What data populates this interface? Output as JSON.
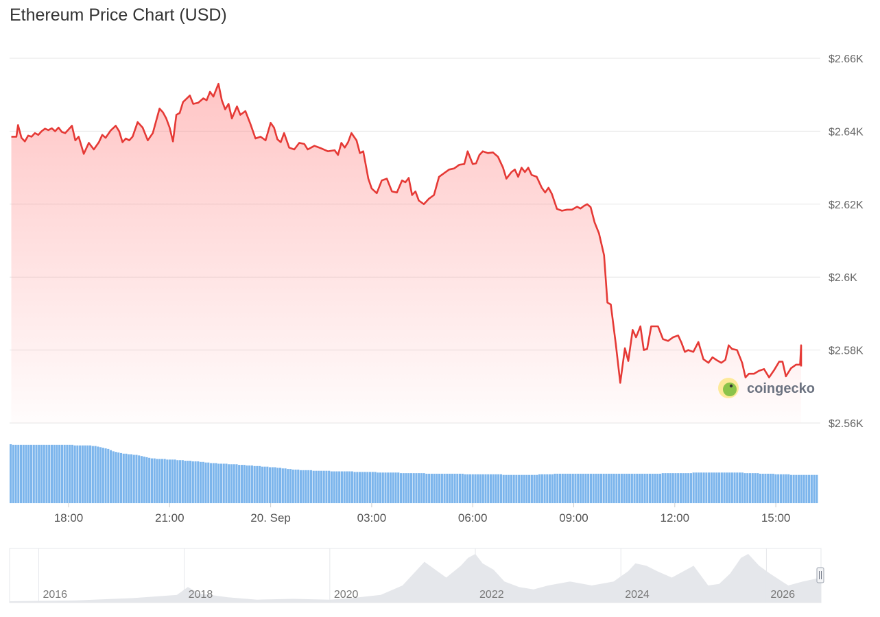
{
  "title": "Ethereum Price Chart (USD)",
  "watermark": "coingecko",
  "colors": {
    "price_line": "#e53935",
    "price_fill": "#ff7f7f",
    "volume": "#7cb5ec",
    "grid": "#e6e6e6",
    "navigator_area": "#e5e7eb"
  },
  "chart_data": {
    "type": "line",
    "title": "Ethereum Price Chart (USD)",
    "xlabel": "",
    "ylabel": "",
    "ylim": [
      2560,
      2660
    ],
    "y_ticks": [
      "$2.56K",
      "$2.58K",
      "$2.6K",
      "$2.62K",
      "$2.64K",
      "$2.66K"
    ],
    "x_ticks": [
      "18:00",
      "21:00",
      "20. Sep",
      "03:00",
      "06:00",
      "09:00",
      "12:00",
      "15:00"
    ],
    "x_tick_hours": [
      18,
      21,
      24,
      27,
      30,
      33,
      36,
      39
    ],
    "x_range_hours": [
      16.3,
      40.2
    ],
    "grid": true,
    "legend": "none",
    "series": [
      {
        "values": [
          [
            16.3,
            2638.5
          ],
          [
            16.45,
            2638.5
          ],
          [
            16.5,
            2641.7
          ],
          [
            16.6,
            2638.2
          ],
          [
            16.7,
            2637.2
          ],
          [
            16.8,
            2638.8
          ],
          [
            16.9,
            2638.5
          ],
          [
            17.0,
            2639.5
          ],
          [
            17.1,
            2639.0
          ],
          [
            17.2,
            2640.0
          ],
          [
            17.3,
            2640.7
          ],
          [
            17.4,
            2640.3
          ],
          [
            17.5,
            2640.8
          ],
          [
            17.6,
            2640.0
          ],
          [
            17.7,
            2641.0
          ],
          [
            17.8,
            2639.8
          ],
          [
            17.9,
            2639.5
          ],
          [
            18.0,
            2640.5
          ],
          [
            18.1,
            2641.5
          ],
          [
            18.2,
            2637.5
          ],
          [
            18.3,
            2638.5
          ],
          [
            18.45,
            2633.8
          ],
          [
            18.6,
            2636.8
          ],
          [
            18.75,
            2635.0
          ],
          [
            18.9,
            2637.0
          ],
          [
            19.0,
            2639.0
          ],
          [
            19.1,
            2638.2
          ],
          [
            19.25,
            2640.2
          ],
          [
            19.4,
            2641.5
          ],
          [
            19.5,
            2640.0
          ],
          [
            19.6,
            2637.0
          ],
          [
            19.7,
            2638.0
          ],
          [
            19.8,
            2637.5
          ],
          [
            19.9,
            2638.5
          ],
          [
            20.05,
            2642.5
          ],
          [
            20.2,
            2641.0
          ],
          [
            20.35,
            2637.5
          ],
          [
            20.5,
            2639.5
          ],
          [
            20.7,
            2646.2
          ],
          [
            20.8,
            2645.2
          ],
          [
            20.9,
            2643.5
          ],
          [
            21.0,
            2641.0
          ],
          [
            21.1,
            2637.2
          ],
          [
            21.2,
            2644.5
          ],
          [
            21.3,
            2645.0
          ],
          [
            21.4,
            2648.0
          ],
          [
            21.6,
            2649.8
          ],
          [
            21.7,
            2647.5
          ],
          [
            21.85,
            2647.8
          ],
          [
            22.0,
            2649.0
          ],
          [
            22.1,
            2648.5
          ],
          [
            22.2,
            2650.8
          ],
          [
            22.3,
            2649.5
          ],
          [
            22.45,
            2653.0
          ],
          [
            22.55,
            2648.5
          ],
          [
            22.65,
            2646.0
          ],
          [
            22.75,
            2647.5
          ],
          [
            22.85,
            2643.5
          ],
          [
            23.0,
            2646.8
          ],
          [
            23.1,
            2644.5
          ],
          [
            23.25,
            2645.5
          ],
          [
            23.4,
            2642.0
          ],
          [
            23.55,
            2638.0
          ],
          [
            23.7,
            2638.5
          ],
          [
            23.85,
            2637.5
          ],
          [
            24.0,
            2642.3
          ],
          [
            24.1,
            2641.0
          ],
          [
            24.2,
            2637.8
          ],
          [
            24.3,
            2637.0
          ],
          [
            24.4,
            2639.5
          ],
          [
            24.55,
            2635.5
          ],
          [
            24.7,
            2635.0
          ],
          [
            24.85,
            2636.8
          ],
          [
            25.0,
            2636.5
          ],
          [
            25.1,
            2635.0
          ],
          [
            25.3,
            2636.0
          ],
          [
            25.5,
            2635.3
          ],
          [
            25.7,
            2634.5
          ],
          [
            25.9,
            2634.8
          ],
          [
            26.0,
            2633.5
          ],
          [
            26.1,
            2636.8
          ],
          [
            26.2,
            2635.5
          ],
          [
            26.3,
            2637.0
          ],
          [
            26.4,
            2639.5
          ],
          [
            26.55,
            2637.5
          ],
          [
            26.65,
            2634.0
          ],
          [
            26.75,
            2634.5
          ],
          [
            26.9,
            2627.0
          ],
          [
            27.0,
            2624.3
          ],
          [
            27.15,
            2623.0
          ],
          [
            27.3,
            2626.5
          ],
          [
            27.45,
            2627.0
          ],
          [
            27.6,
            2623.5
          ],
          [
            27.75,
            2623.2
          ],
          [
            27.9,
            2626.5
          ],
          [
            28.0,
            2626.0
          ],
          [
            28.1,
            2627.2
          ],
          [
            28.2,
            2622.5
          ],
          [
            28.3,
            2623.5
          ],
          [
            28.4,
            2621.0
          ],
          [
            28.55,
            2620.0
          ],
          [
            28.7,
            2621.5
          ],
          [
            28.85,
            2622.5
          ],
          [
            29.0,
            2627.5
          ],
          [
            29.15,
            2628.5
          ],
          [
            29.3,
            2629.5
          ],
          [
            29.45,
            2629.8
          ],
          [
            29.6,
            2630.8
          ],
          [
            29.75,
            2631.0
          ],
          [
            29.85,
            2634.5
          ],
          [
            30.0,
            2631.0
          ],
          [
            30.1,
            2631.2
          ],
          [
            30.2,
            2633.5
          ],
          [
            30.3,
            2634.5
          ],
          [
            30.45,
            2634.0
          ],
          [
            30.6,
            2634.2
          ],
          [
            30.75,
            2633.0
          ],
          [
            30.9,
            2630.0
          ],
          [
            31.0,
            2627.0
          ],
          [
            31.15,
            2628.8
          ],
          [
            31.25,
            2629.5
          ],
          [
            31.35,
            2627.5
          ],
          [
            31.45,
            2630.0
          ],
          [
            31.55,
            2628.8
          ],
          [
            31.65,
            2630.0
          ],
          [
            31.75,
            2628.0
          ],
          [
            31.9,
            2627.5
          ],
          [
            32.05,
            2624.5
          ],
          [
            32.15,
            2623.2
          ],
          [
            32.25,
            2624.5
          ],
          [
            32.35,
            2622.8
          ],
          [
            32.5,
            2618.7
          ],
          [
            32.65,
            2618.2
          ],
          [
            32.8,
            2618.5
          ],
          [
            32.95,
            2618.5
          ],
          [
            33.1,
            2619.3
          ],
          [
            33.2,
            2618.8
          ],
          [
            33.3,
            2619.5
          ],
          [
            33.4,
            2620.0
          ],
          [
            33.5,
            2619.2
          ],
          [
            33.62,
            2615.0
          ],
          [
            33.75,
            2612.0
          ],
          [
            33.9,
            2606.0
          ],
          [
            34.0,
            2593.0
          ],
          [
            34.1,
            2592.5
          ],
          [
            34.25,
            2581.5
          ],
          [
            34.38,
            2571.0
          ],
          [
            34.52,
            2580.5
          ],
          [
            34.62,
            2577.0
          ],
          [
            34.75,
            2585.5
          ],
          [
            34.85,
            2583.5
          ],
          [
            34.98,
            2586.5
          ],
          [
            35.08,
            2580.0
          ],
          [
            35.18,
            2580.3
          ],
          [
            35.3,
            2586.5
          ],
          [
            35.5,
            2586.5
          ],
          [
            35.65,
            2583.0
          ],
          [
            35.8,
            2582.5
          ],
          [
            35.95,
            2583.5
          ],
          [
            36.1,
            2584.0
          ],
          [
            36.2,
            2582.0
          ],
          [
            36.3,
            2579.5
          ],
          [
            36.4,
            2580.0
          ],
          [
            36.55,
            2579.5
          ],
          [
            36.7,
            2582.2
          ],
          [
            36.85,
            2577.5
          ],
          [
            37.0,
            2576.5
          ],
          [
            37.12,
            2578.0
          ],
          [
            37.25,
            2577.2
          ],
          [
            37.38,
            2576.5
          ],
          [
            37.5,
            2577.3
          ],
          [
            37.6,
            2581.3
          ],
          [
            37.7,
            2580.3
          ],
          [
            37.85,
            2580.0
          ],
          [
            38.0,
            2576.5
          ],
          [
            38.1,
            2572.5
          ],
          [
            38.2,
            2573.5
          ],
          [
            38.35,
            2573.5
          ],
          [
            38.5,
            2574.3
          ],
          [
            38.65,
            2574.8
          ],
          [
            38.8,
            2572.5
          ],
          [
            38.95,
            2574.5
          ],
          [
            39.1,
            2576.8
          ],
          [
            39.2,
            2576.8
          ],
          [
            39.3,
            2572.8
          ],
          [
            39.45,
            2575.0
          ],
          [
            39.6,
            2576.0
          ],
          [
            39.72,
            2576.0
          ],
          [
            39.85,
            2581.3
          ],
          [
            40.0,
            2580.0
          ],
          [
            40.15,
            2579.0
          ],
          [
            40.3,
            2576.0
          ],
          [
            40.5,
            2575.5
          ]
        ]
      }
    ]
  },
  "volume_chart": {
    "type": "bar",
    "values": [
      100,
      99,
      99,
      99,
      99,
      99,
      99,
      99,
      99,
      99,
      99,
      99,
      99,
      99,
      99,
      99,
      99,
      99,
      99,
      99,
      99,
      99,
      99,
      99,
      99,
      98,
      98,
      98,
      98,
      98,
      98,
      98,
      97,
      97,
      96,
      95,
      94,
      93,
      92,
      90,
      88,
      87,
      86,
      85,
      84,
      84,
      83,
      83,
      82,
      82,
      81,
      80,
      79,
      78,
      77,
      76,
      76,
      75,
      75,
      75,
      75,
      74,
      74,
      74,
      74,
      73,
      73,
      73,
      72,
      72,
      72,
      71,
      71,
      71,
      70,
      70,
      69,
      69,
      68,
      68,
      68,
      67,
      67,
      67,
      67,
      66,
      66,
      66,
      66,
      65,
      65,
      65,
      64,
      64,
      64,
      63,
      63,
      63,
      62,
      62,
      62,
      61,
      61,
      61,
      60,
      60,
      59,
      59,
      58,
      58,
      57,
      57,
      57,
      56,
      56,
      56,
      56,
      56,
      55,
      55,
      55,
      55,
      55,
      55,
      55,
      54,
      54,
      54,
      54,
      54,
      54,
      54,
      54,
      54,
      53,
      53,
      53,
      53,
      53,
      53,
      53,
      53,
      53,
      52,
      52,
      52,
      52,
      52,
      52,
      52,
      52,
      52,
      51,
      51,
      51,
      51,
      51,
      51,
      51,
      51,
      51,
      51,
      50,
      50,
      50,
      50,
      50,
      50,
      50,
      50,
      50,
      50,
      50,
      50,
      50,
      50,
      50,
      49,
      49,
      49,
      49,
      49,
      49,
      49,
      49,
      49,
      49,
      49,
      49,
      49,
      49,
      49,
      48,
      48,
      48,
      48,
      48,
      48,
      48,
      48,
      48,
      48,
      48,
      48,
      48,
      48,
      49,
      49,
      49,
      49,
      49,
      49,
      50,
      50,
      50,
      50,
      50,
      50,
      50,
      50,
      50,
      50,
      50,
      50,
      50,
      50,
      50,
      50,
      50,
      50,
      50,
      50,
      50,
      50,
      50,
      50,
      50,
      50,
      50,
      50,
      50,
      50,
      50,
      50,
      50,
      50,
      50,
      50,
      50,
      50,
      50,
      50,
      50,
      50,
      51,
      51,
      51,
      51,
      51,
      51,
      51,
      51,
      51,
      51,
      51,
      51,
      52,
      52,
      52,
      52,
      52,
      52,
      52,
      52,
      52,
      52,
      52,
      52,
      52,
      52,
      52,
      52,
      52,
      52,
      52,
      52,
      51,
      51,
      51,
      51,
      51,
      51,
      50,
      50,
      50,
      50,
      50,
      50,
      49,
      49,
      49,
      49,
      49,
      49,
      48,
      48,
      48,
      48,
      48,
      48,
      48,
      48,
      48,
      48,
      48
    ]
  },
  "navigator": {
    "year_labels": [
      "2016",
      "2018",
      "2020",
      "2022",
      "2024",
      "2026"
    ],
    "year_positions": [
      2016,
      2018,
      2020,
      2022,
      2024,
      2026
    ],
    "range_years": [
      2015.6,
      2026.75
    ],
    "history_points": [
      [
        2015.6,
        0
      ],
      [
        2016.5,
        1
      ],
      [
        2017.3,
        4
      ],
      [
        2017.9,
        8
      ],
      [
        2018.05,
        18
      ],
      [
        2018.2,
        10
      ],
      [
        2018.6,
        5
      ],
      [
        2019.0,
        2
      ],
      [
        2019.5,
        3
      ],
      [
        2020.0,
        2
      ],
      [
        2020.3,
        4
      ],
      [
        2020.7,
        8
      ],
      [
        2021.0,
        20
      ],
      [
        2021.3,
        50
      ],
      [
        2021.45,
        40
      ],
      [
        2021.6,
        30
      ],
      [
        2021.8,
        45
      ],
      [
        2021.9,
        55
      ],
      [
        2022.0,
        60
      ],
      [
        2022.1,
        48
      ],
      [
        2022.25,
        40
      ],
      [
        2022.4,
        25
      ],
      [
        2022.6,
        18
      ],
      [
        2022.8,
        15
      ],
      [
        2023.0,
        20
      ],
      [
        2023.3,
        25
      ],
      [
        2023.6,
        20
      ],
      [
        2023.9,
        25
      ],
      [
        2024.1,
        38
      ],
      [
        2024.2,
        48
      ],
      [
        2024.35,
        45
      ],
      [
        2024.5,
        38
      ],
      [
        2024.7,
        30
      ],
      [
        2024.9,
        40
      ],
      [
        2025.0,
        45
      ],
      [
        2025.2,
        20
      ],
      [
        2025.35,
        22
      ],
      [
        2025.5,
        35
      ],
      [
        2025.65,
        55
      ],
      [
        2025.75,
        60
      ],
      [
        2025.9,
        45
      ],
      [
        2026.05,
        35
      ],
      [
        2026.3,
        20
      ],
      [
        2026.5,
        25
      ],
      [
        2026.75,
        30
      ]
    ]
  }
}
